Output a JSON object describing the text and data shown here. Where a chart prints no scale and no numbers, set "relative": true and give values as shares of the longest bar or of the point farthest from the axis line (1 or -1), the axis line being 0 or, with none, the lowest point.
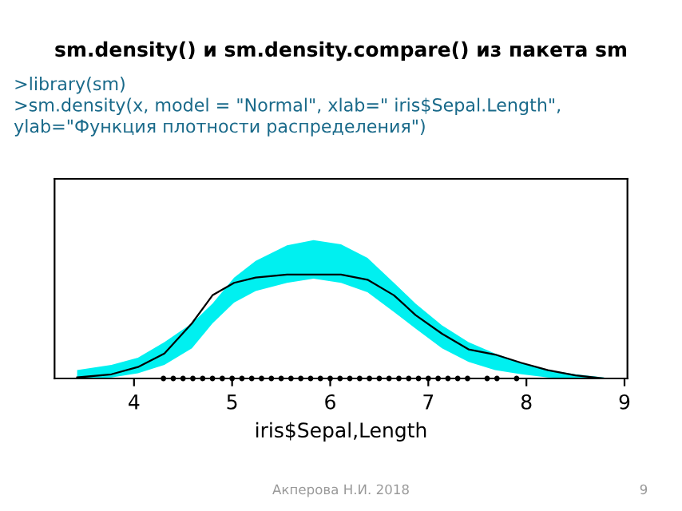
{
  "chart_data": {
    "type": "line",
    "title": "sm.density() и sm.density.compare() из пакета sm",
    "subtitle": ">library(sm)\n>sm.density(x, model = \"Normal\", xlab=\" iris$Sepal.Length\",\nylab=\"Функция плотности распределения\")",
    "xlabel": "iris$Sepal,Length",
    "annotations": [
      "Акперова Н.И. 2018",
      "9"
    ],
    "relative": true,
    "tick_labels": "x",
    "xlim": [
      3.19,
      9.03
    ],
    "xticks": [
      4,
      5,
      6,
      7,
      8,
      9
    ],
    "grid": false,
    "legend": false,
    "series": [
      {
        "color": "#000000",
        "x": [
          3.42,
          3.77,
          4.04,
          4.31,
          4.59,
          4.8,
          5.02,
          5.24,
          5.56,
          5.83,
          6.11,
          6.38,
          6.65,
          6.87,
          7.14,
          7.41,
          7.68,
          7.95,
          8.22,
          8.5,
          8.79
        ],
        "values": [
          0.01,
          0.04,
          0.11,
          0.24,
          0.53,
          0.8,
          0.92,
          0.97,
          1.0,
          1.0,
          1.0,
          0.95,
          0.8,
          0.61,
          0.43,
          0.28,
          0.23,
          0.15,
          0.08,
          0.03,
          0.0
        ],
        "upper": [
          0.08,
          0.13,
          0.2,
          0.35,
          0.53,
          0.72,
          0.97,
          1.13,
          1.28,
          1.33,
          1.29,
          1.16,
          0.92,
          0.72,
          0.51,
          0.35,
          0.24,
          0.15,
          0.08,
          0.04,
          0.01
        ],
        "lower": [
          0.0,
          0.01,
          0.05,
          0.13,
          0.29,
          0.53,
          0.73,
          0.84,
          0.92,
          0.96,
          0.92,
          0.83,
          0.64,
          0.48,
          0.29,
          0.16,
          0.08,
          0.04,
          0.01,
          0.0,
          0.0
        ]
      },
      {
        "type": "scatter",
        "color": "#000000",
        "x": [
          4.3,
          4.4,
          4.5,
          4.6,
          4.7,
          4.8,
          4.9,
          5.0,
          5.1,
          5.2,
          5.3,
          5.4,
          5.5,
          5.6,
          5.7,
          5.8,
          5.9,
          6.0,
          6.1,
          6.2,
          6.3,
          6.4,
          6.5,
          6.6,
          6.7,
          6.8,
          6.9,
          7.0,
          7.1,
          7.2,
          7.3,
          7.4,
          7.6,
          7.7,
          7.9
        ],
        "values": [
          0,
          0,
          0,
          0,
          0,
          0,
          0,
          0,
          0,
          0,
          0,
          0,
          0,
          0,
          0,
          0,
          0,
          0,
          0,
          0,
          0,
          0,
          0,
          0,
          0,
          0,
          0,
          0,
          0,
          0,
          0,
          0,
          0,
          0,
          0
        ]
      }
    ]
  }
}
